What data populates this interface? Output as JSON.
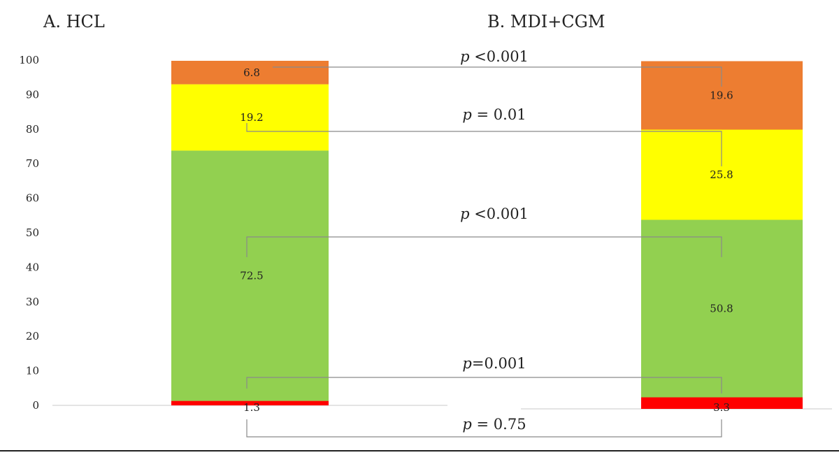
{
  "chart_data": {
    "type": "bar",
    "stacked": true,
    "ylim": [
      0,
      100
    ],
    "yticks": [
      0,
      10,
      20,
      30,
      40,
      50,
      60,
      70,
      80,
      90,
      100
    ],
    "colors": {
      "red": "#ff0000",
      "green": "#92d050",
      "yellow": "#ffff00",
      "orange": "#ed7d31",
      "bracket": "#8a8a8a"
    },
    "panels": [
      {
        "title": "A. HCL",
        "segments": [
          {
            "color": "red",
            "value": 1.3,
            "label": "1.3"
          },
          {
            "color": "green",
            "value": 72.5,
            "label": "72.5"
          },
          {
            "color": "yellow",
            "value": 19.2,
            "label": "19.2"
          },
          {
            "color": "orange",
            "value": 6.8,
            "label": "6.8"
          }
        ]
      },
      {
        "title": "B. MDI+CGM",
        "segments": [
          {
            "color": "red",
            "value": 3.3,
            "label": "3.3"
          },
          {
            "color": "green",
            "value": 50.8,
            "label": "50.8"
          },
          {
            "color": "yellow",
            "value": 25.8,
            "label": "25.8"
          },
          {
            "color": "orange",
            "value": 19.6,
            "label": "19.6"
          }
        ]
      }
    ],
    "comparisons": [
      {
        "segment": "orange",
        "p_symbol": "p",
        "p_rest": " <0.001"
      },
      {
        "segment": "yellow",
        "p_symbol": "p",
        "p_rest": " = 0.01"
      },
      {
        "segment": "green",
        "p_symbol": "p",
        "p_rest": " <0.001"
      },
      {
        "segment": "red",
        "p_symbol": "p",
        "p_rest": "=0.001"
      },
      {
        "segment": "overall",
        "p_symbol": "p",
        "p_rest": " = 0.75"
      }
    ]
  }
}
